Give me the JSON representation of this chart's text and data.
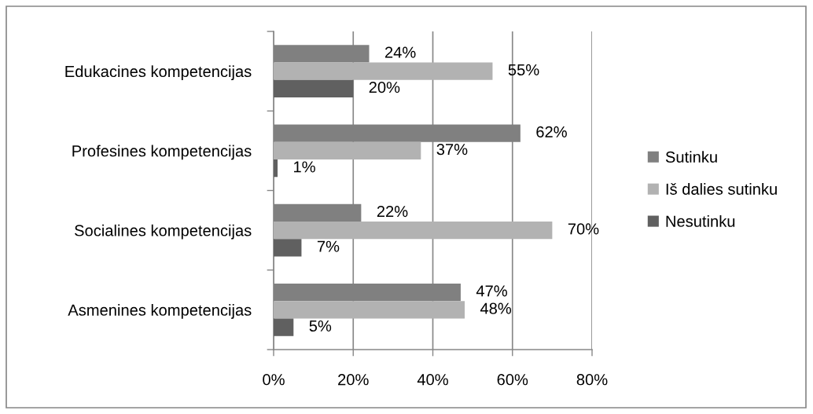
{
  "chart_data": {
    "type": "bar",
    "orientation": "horizontal",
    "categories": [
      "Edukacines kompetencijas",
      "Profesines kompetencijas",
      "Socialines kompetencijas",
      "Asmenines kompetencijas"
    ],
    "series": [
      {
        "name": "Sutinku",
        "color": "#808080",
        "values": [
          24,
          62,
          22,
          47
        ],
        "value_labels": [
          "24%",
          "62%",
          "22%",
          "47%"
        ]
      },
      {
        "name": "Iš dalies sutinku",
        "color": "#b2b2b2",
        "values": [
          55,
          37,
          70,
          48
        ],
        "value_labels": [
          "55%",
          "37%",
          "70%",
          "48%"
        ]
      },
      {
        "name": "Nesutinku",
        "color": "#606060",
        "values": [
          20,
          1,
          7,
          5
        ],
        "value_labels": [
          "20%",
          "1%",
          "7%",
          "5%"
        ]
      }
    ],
    "xlim": [
      0,
      80
    ],
    "xticks": [
      {
        "value": 0,
        "label": "0%"
      },
      {
        "value": 20,
        "label": "20%"
      },
      {
        "value": 40,
        "label": "40%"
      },
      {
        "value": 60,
        "label": "60%"
      },
      {
        "value": 80,
        "label": "80%"
      }
    ],
    "grid": "x",
    "legend": "right"
  }
}
